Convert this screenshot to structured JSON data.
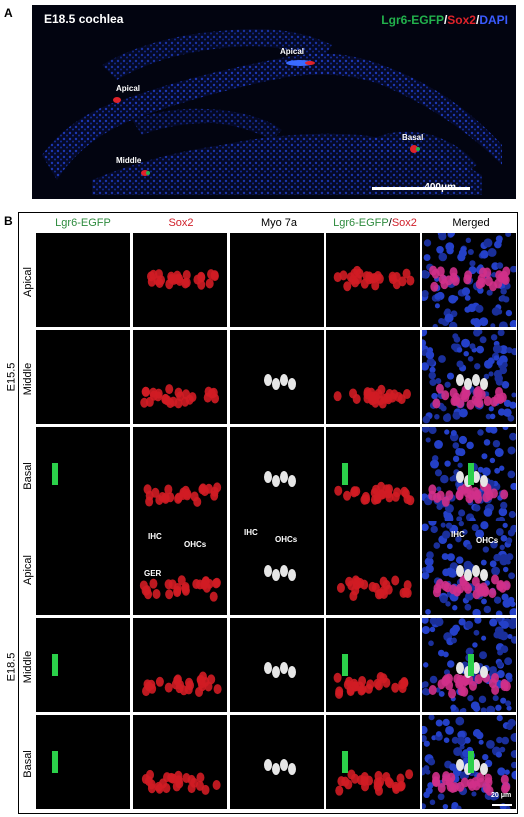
{
  "panel_a": {
    "letter": "A",
    "title": "E18.5 cochlea",
    "legend": [
      {
        "text": "Lgr6-EGFP",
        "color": "#22b14c"
      },
      {
        "text": "/",
        "color": "#ffffff"
      },
      {
        "text": "Sox2",
        "color": "#e0222a"
      },
      {
        "text": "/",
        "color": "#ffffff"
      },
      {
        "text": "DAPI",
        "color": "#3a5bff"
      }
    ],
    "labels": {
      "apical_right": "Apical",
      "apical_left": "Apical",
      "basal": "Basal",
      "middle": "Middle"
    },
    "scale_bar": "400μm"
  },
  "panel_b": {
    "letter": "B",
    "columns": [
      {
        "label": "Lgr6-EGFP",
        "color": "#2e8b3e"
      },
      {
        "label": "Sox2",
        "color": "#d0202a"
      },
      {
        "label": "Myo 7a",
        "color": "#000000"
      },
      {
        "label": "Lgr6-EGFP/Sox2",
        "color": "#2e8b3e",
        "label2_color": "#d0202a"
      },
      {
        "label": "Merged",
        "color": "#000000"
      }
    ],
    "col4_parts": [
      "Lgr6-EGFP",
      "/",
      "Sox2"
    ],
    "groups": [
      "E15.5",
      "E18.5"
    ],
    "rows": [
      "Apical",
      "Middle",
      "Basal",
      "Apical",
      "Middle",
      "Basal"
    ],
    "annotations": {
      "ihc": "IHC",
      "ohcs": "OHCs",
      "ger": "GER"
    },
    "scale_bar": "20 μm"
  }
}
